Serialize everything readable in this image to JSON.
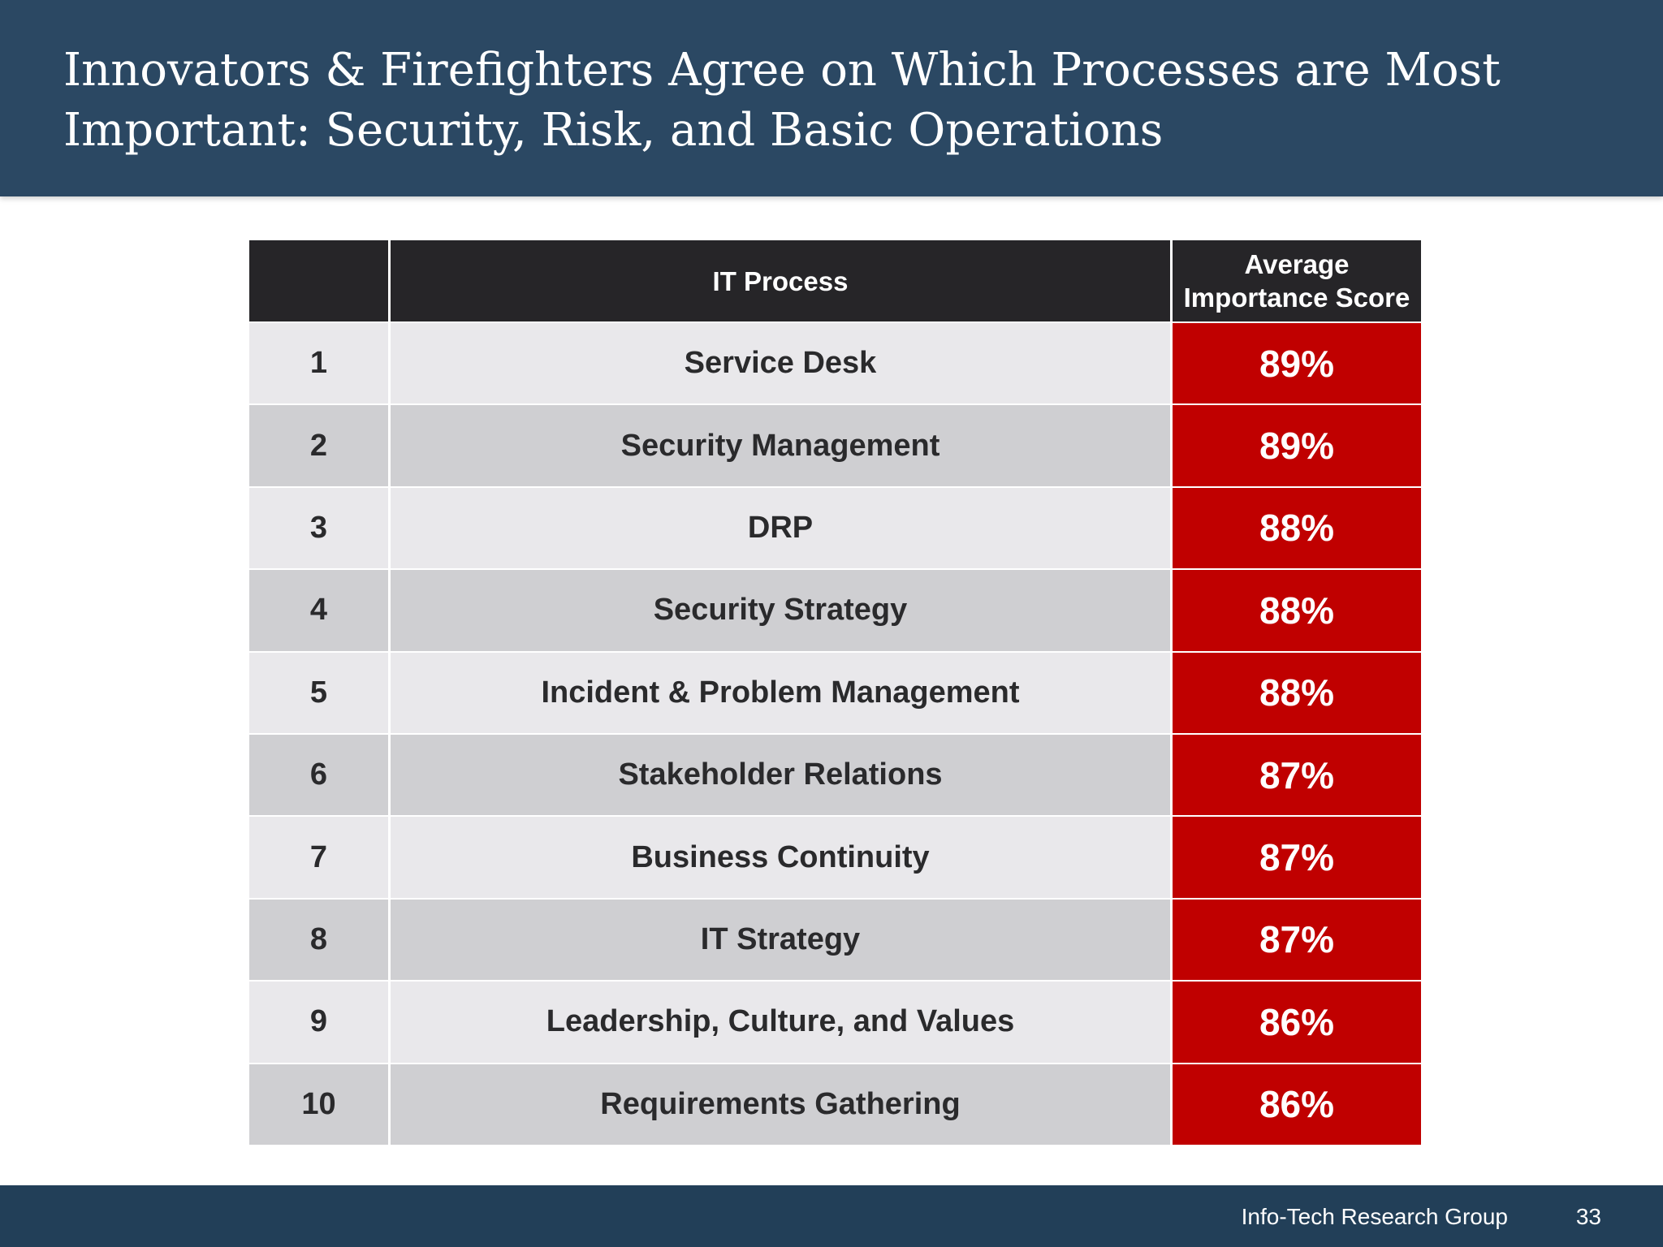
{
  "slide": {
    "title": "Innovators & Firefighters Agree on Which Processes are Most Important: Security, Risk, and Basic Operations"
  },
  "table": {
    "headers": {
      "rank": "",
      "process": "IT Process",
      "score": "Average Importance Score"
    },
    "rows": [
      {
        "rank": "1",
        "process": "Service Desk",
        "score": "89%"
      },
      {
        "rank": "2",
        "process": "Security Management",
        "score": "89%"
      },
      {
        "rank": "3",
        "process": "DRP",
        "score": "88%"
      },
      {
        "rank": "4",
        "process": "Security Strategy",
        "score": "88%"
      },
      {
        "rank": "5",
        "process": "Incident & Problem Management",
        "score": "88%"
      },
      {
        "rank": "6",
        "process": "Stakeholder Relations",
        "score": "87%"
      },
      {
        "rank": "7",
        "process": "Business Continuity",
        "score": "87%"
      },
      {
        "rank": "8",
        "process": "IT Strategy",
        "score": "87%"
      },
      {
        "rank": "9",
        "process": "Leadership, Culture, and Values",
        "score": "86%"
      },
      {
        "rank": "10",
        "process": "Requirements Gathering",
        "score": "86%"
      }
    ]
  },
  "footer": {
    "organization": "Info-Tech Research Group",
    "page_number": "33"
  },
  "colors": {
    "header_bg": "#2b4863",
    "table_head_bg": "#262528",
    "score_bg": "#c00000",
    "row_light": "#e9e8eb",
    "row_dark": "#cfcfd2",
    "footer_bg": "#223f58"
  }
}
